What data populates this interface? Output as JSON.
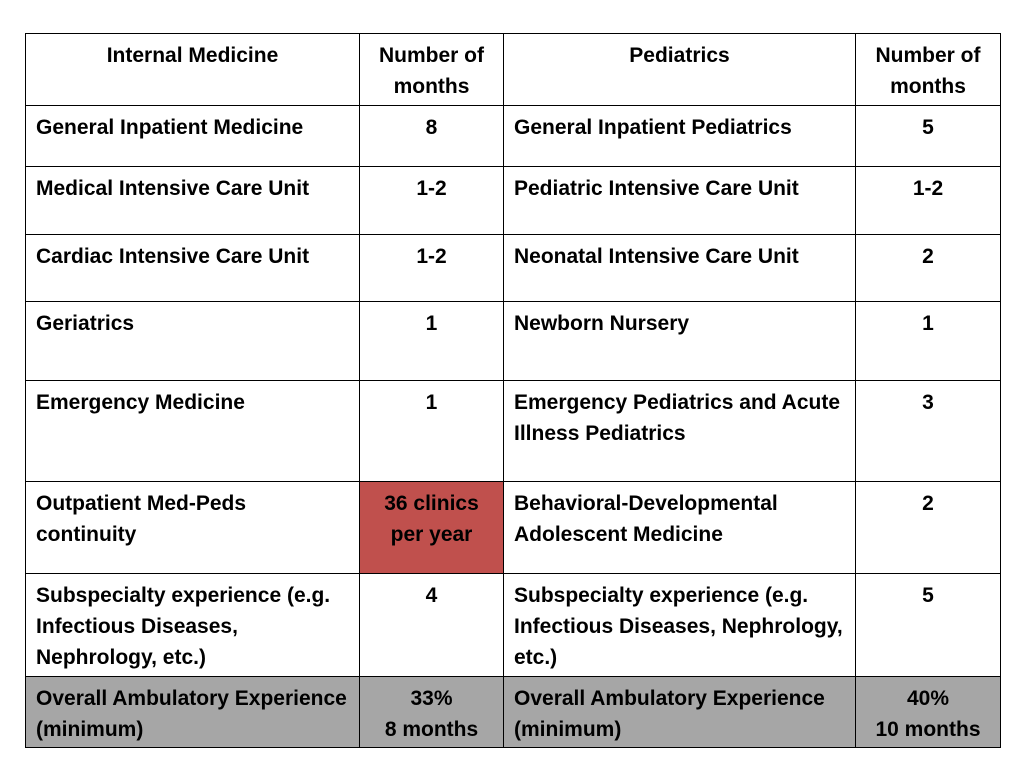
{
  "header": {
    "col1": "Internal Medicine",
    "col2": "Number of months",
    "col3": "Pediatrics",
    "col4": "Number of months"
  },
  "rows": [
    {
      "im": "General Inpatient Medicine",
      "im_months": "8",
      "peds": "General Inpatient Pediatrics",
      "peds_months": "5"
    },
    {
      "im": "Medical Intensive Care Unit",
      "im_months": "1-2",
      "peds": "Pediatric Intensive Care Unit",
      "peds_months": "1-2"
    },
    {
      "im": "Cardiac Intensive Care Unit",
      "im_months": "1-2",
      "peds": "Neonatal Intensive Care Unit",
      "peds_months": "2"
    },
    {
      "im": "Geriatrics",
      "im_months": "1",
      "peds": "Newborn Nursery",
      "peds_months": "1"
    },
    {
      "im": "Emergency Medicine",
      "im_months": "1",
      "peds": "Emergency Pediatrics and Acute Illness Pediatrics",
      "peds_months": "3"
    },
    {
      "im": "Outpatient Med-Peds continuity",
      "im_months": "36 clinics per year",
      "peds": "Behavioral-Developmental Adolescent Medicine",
      "peds_months": "2"
    },
    {
      "im": "Subspecialty experience (e.g. Infectious Diseases, Nephrology, etc.)",
      "im_months": "4",
      "peds": "Subspecialty experience (e.g. Infectious Diseases, Nephrology, etc.)",
      "peds_months": "5"
    },
    {
      "im": "Overall Ambulatory Experience (minimum)",
      "im_months": "33%\n8 months",
      "peds": "Overall Ambulatory Experience (minimum)",
      "peds_months": "40%\n10 months"
    }
  ],
  "colors": {
    "highlight_cell": "#c0504d",
    "summary_row": "#a6a6a6"
  }
}
